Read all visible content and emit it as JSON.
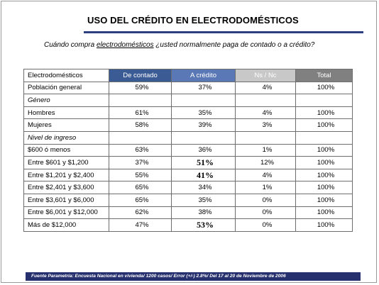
{
  "title": "USO DEL CRÉDITO EN ELECTRODOMÉSTICOS",
  "question": {
    "prefix": "Cuándo compra ",
    "underlined": "electrodomésticos",
    "middle": " ¿usted ",
    "underlined2": "normalmente",
    "suffix": " paga de contado o a crédito?"
  },
  "table": {
    "headers": [
      "Electrodomésticos",
      "De contado",
      "A crédito",
      "Ns / Nc",
      "Total"
    ],
    "header_colors": {
      "contado": "#3b5b95",
      "credito": "#5a78b5",
      "nsnc": "#c8c8c8",
      "total": "#808080"
    },
    "rows": [
      {
        "label": "Población general",
        "contado": "59%",
        "credito": "37%",
        "nsnc": "4%",
        "total": "100%"
      },
      {
        "label": "Género",
        "section": true
      },
      {
        "label": "Hombres",
        "contado": "61%",
        "credito": "35%",
        "nsnc": "4%",
        "total": "100%"
      },
      {
        "label": "Mujeres",
        "contado": "58%",
        "credito": "39%",
        "nsnc": "3%",
        "total": "100%"
      },
      {
        "label": "Nivel de ingreso",
        "section": true
      },
      {
        "label": "$600 ó menos",
        "contado": "63%",
        "credito": "36%",
        "nsnc": "1%",
        "total": "100%"
      },
      {
        "label": "Entre $601 y $1,200",
        "contado": "37%",
        "credito": "51%",
        "credito_bold": true,
        "nsnc": "12%",
        "total": "100%"
      },
      {
        "label": "Entre $1,201 y $2,400",
        "contado": "55%",
        "credito": "41%",
        "credito_bold": true,
        "nsnc": "4%",
        "total": "100%"
      },
      {
        "label": "Entre $2,401 y $3,600",
        "contado": "65%",
        "credito": "34%",
        "nsnc": "1%",
        "total": "100%"
      },
      {
        "label": "Entre $3,601 y $6,000",
        "contado": "65%",
        "credito": "35%",
        "nsnc": "0%",
        "total": "100%"
      },
      {
        "label": "Entre $6,001 y $12,000",
        "contado": "62%",
        "credito": "38%",
        "nsnc": "0%",
        "total": "100%"
      },
      {
        "label": "Más de $12,000",
        "contado": "47%",
        "credito": "53%",
        "credito_bold": true,
        "nsnc": "0%",
        "total": "100%"
      }
    ]
  },
  "footer": "Fuente Parametría: Encuesta Nacional en vivienda/ 1200 casos/ Error (+/-) 2.8%/ Del 17 al 20 de Noviembre de 2006"
}
